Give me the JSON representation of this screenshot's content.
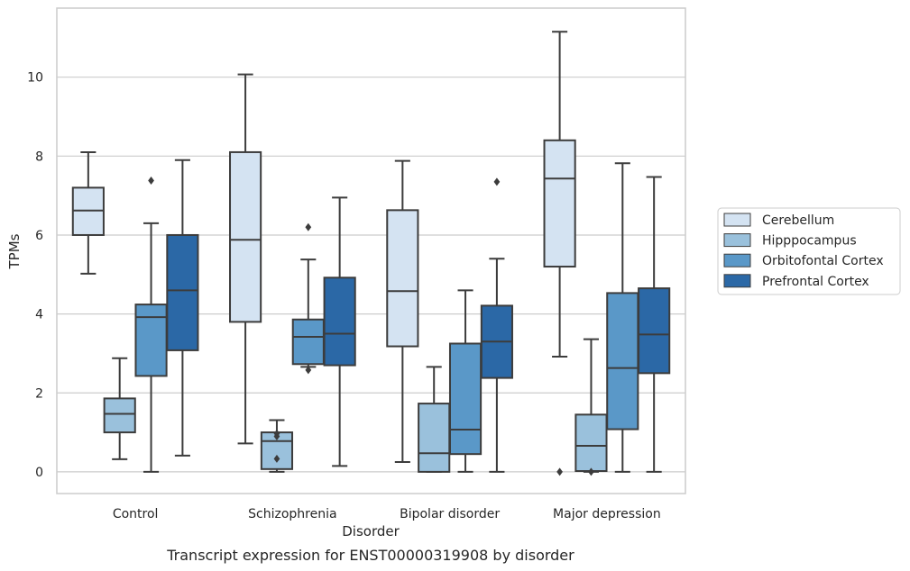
{
  "chart_data": {
    "type": "boxplot",
    "title": "",
    "caption": "Transcript expression for ENST00000319908 by disorder",
    "xlabel": "Disorder",
    "ylabel": "TPMs",
    "ylim": [
      -0.55,
      11.75
    ],
    "yticks": [
      0,
      2,
      4,
      6,
      8,
      10
    ],
    "grid": "horizontal",
    "legend_position": "right",
    "categories": [
      "Control",
      "Schizophrenia",
      "Bipolar disorder",
      "Major depression"
    ],
    "series": [
      {
        "name": "Cerebellum",
        "color": "#d4e3f2",
        "boxes": [
          {
            "whislo": 5.02,
            "q1": 6.0,
            "med": 6.62,
            "q3": 7.2,
            "whishi": 8.1,
            "fliers": []
          },
          {
            "whislo": 0.72,
            "q1": 3.8,
            "med": 5.88,
            "q3": 8.1,
            "whishi": 10.07,
            "fliers": []
          },
          {
            "whislo": 0.25,
            "q1": 3.18,
            "med": 4.58,
            "q3": 6.63,
            "whishi": 7.88,
            "fliers": []
          },
          {
            "whislo": 2.92,
            "q1": 5.2,
            "med": 7.43,
            "q3": 8.4,
            "whishi": 11.15,
            "fliers": [
              0.0
            ]
          }
        ]
      },
      {
        "name": "Hipppocampus",
        "color": "#9ac1dc",
        "boxes": [
          {
            "whislo": 0.32,
            "q1": 1.0,
            "med": 1.47,
            "q3": 1.86,
            "whishi": 2.88,
            "fliers": []
          },
          {
            "whislo": 0.0,
            "q1": 0.07,
            "med": 0.78,
            "q3": 1.0,
            "whishi": 1.31,
            "fliers": [
              0.33,
              0.9,
              0.97
            ]
          },
          {
            "whislo": 0.0,
            "q1": 0.0,
            "med": 0.47,
            "q3": 1.73,
            "whishi": 2.66,
            "fliers": []
          },
          {
            "whislo": 0.0,
            "q1": 0.02,
            "med": 0.66,
            "q3": 1.45,
            "whishi": 3.36,
            "fliers": [
              0.0
            ]
          }
        ]
      },
      {
        "name": "Orbitofontal Cortex",
        "color": "#5a98c8",
        "boxes": [
          {
            "whislo": 0.0,
            "q1": 2.43,
            "med": 3.92,
            "q3": 4.24,
            "whishi": 6.3,
            "fliers": [
              7.38
            ]
          },
          {
            "whislo": 2.66,
            "q1": 2.73,
            "med": 3.42,
            "q3": 3.86,
            "whishi": 5.38,
            "fliers": [
              2.58,
              6.2
            ]
          },
          {
            "whislo": 0.0,
            "q1": 0.45,
            "med": 1.07,
            "q3": 3.25,
            "whishi": 4.6,
            "fliers": []
          },
          {
            "whislo": 0.0,
            "q1": 1.08,
            "med": 2.63,
            "q3": 4.53,
            "whishi": 7.82,
            "fliers": []
          }
        ]
      },
      {
        "name": "Prefrontal Cortex",
        "color": "#2b68a6",
        "boxes": [
          {
            "whislo": 0.41,
            "q1": 3.08,
            "med": 4.6,
            "q3": 6.0,
            "whishi": 7.9,
            "fliers": []
          },
          {
            "whislo": 0.15,
            "q1": 2.7,
            "med": 3.5,
            "q3": 4.92,
            "whishi": 6.95,
            "fliers": []
          },
          {
            "whislo": 0.0,
            "q1": 2.38,
            "med": 3.3,
            "q3": 4.21,
            "whishi": 5.4,
            "fliers": [
              7.35
            ]
          },
          {
            "whislo": 0.0,
            "q1": 2.5,
            "med": 3.48,
            "q3": 4.65,
            "whishi": 7.47,
            "fliers": []
          }
        ]
      }
    ]
  }
}
